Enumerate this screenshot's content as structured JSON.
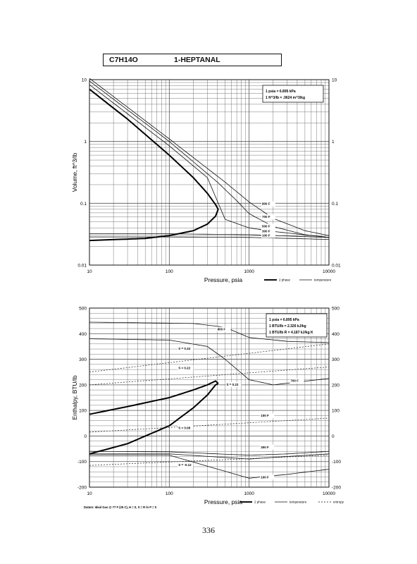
{
  "header": {
    "formula": "C7H14O",
    "name": "1-HEPTANAL"
  },
  "page_number": "336",
  "chart_data": [
    {
      "type": "line",
      "xlabel": "Pressure,  psia",
      "ylabel": "Volume, ft^3/lb",
      "xscale": "log",
      "yscale": "log",
      "xlim": [
        10,
        10000
      ],
      "ylim": [
        0.01,
        10
      ],
      "grid": true,
      "xticks": [
        "10",
        "100",
        "1000",
        "10000"
      ],
      "yticks": [
        "0.01",
        "0.1",
        "1",
        "10"
      ],
      "right_yticks": [
        "0.01",
        "0.1",
        "1",
        "10"
      ],
      "conversion_box": [
        "1 psia  =  6.895 kPa",
        "1 ft^3/lb  =  .0624 m^3/kg"
      ],
      "legend": [
        {
          "label": "2 phase",
          "style": "thick"
        },
        {
          "label": "temperature",
          "style": "thin"
        }
      ],
      "two_phase_dome": {
        "liquid": {
          "x": [
            10,
            50,
            100,
            200,
            300,
            380,
            410
          ],
          "y": [
            0.025,
            0.027,
            0.03,
            0.036,
            0.046,
            0.062,
            0.08
          ]
        },
        "vapor": {
          "x": [
            10,
            30,
            100,
            200,
            300,
            380,
            410
          ],
          "y": [
            7,
            2.3,
            0.6,
            0.26,
            0.145,
            0.095,
            0.08
          ]
        }
      },
      "isotherms": [
        {
          "label": "800 F",
          "x": [
            10,
            100,
            500,
            1000,
            2000,
            5000,
            10000
          ],
          "y": [
            10.5,
            1.1,
            0.22,
            0.105,
            0.057,
            0.036,
            0.03
          ]
        },
        {
          "label": "700 F",
          "x": [
            10,
            100,
            400,
            700,
            1000,
            2000,
            5000,
            10000
          ],
          "y": [
            9.5,
            1,
            0.22,
            0.11,
            0.068,
            0.042,
            0.031,
            0.028
          ]
        },
        {
          "label": "500 F",
          "x": [
            10,
            100,
            300,
            500,
            1000,
            2000,
            10000
          ],
          "y": [
            8.3,
            0.85,
            0.26,
            0.055,
            0.04,
            0.035,
            0.028
          ]
        },
        {
          "label": "300 F",
          "x": [
            10,
            100,
            1000,
            10000
          ],
          "y": [
            0.032,
            0.032,
            0.031,
            0.028
          ]
        },
        {
          "label": "100 F",
          "x": [
            10,
            100,
            1000,
            10000
          ],
          "y": [
            0.0285,
            0.0285,
            0.028,
            0.026
          ]
        }
      ],
      "isotherm_label_positions": [
        {
          "label": "800 F",
          "x": 1450,
          "y": 0.094
        },
        {
          "label": "700 F",
          "x": 1450,
          "y": 0.058
        },
        {
          "label": "500 F",
          "x": 1450,
          "y": 0.041
        },
        {
          "label": "300 F",
          "x": 1450,
          "y": 0.034
        },
        {
          "label": "100 F",
          "x": 1450,
          "y": 0.029
        }
      ]
    },
    {
      "type": "line",
      "xlabel": "Pressure,  psia",
      "ylabel": "Enthalpy, BTU/lb",
      "xscale": "log",
      "xlim": [
        10,
        10000
      ],
      "ylim": [
        -200,
        500
      ],
      "grid": true,
      "xticks": [
        "10",
        "100",
        "1000",
        "10000"
      ],
      "yticks": [
        "-200",
        "-100",
        "0",
        "100",
        "200",
        "300",
        "400",
        "500"
      ],
      "right_yticks": [
        "-200",
        "-100",
        "0",
        "100",
        "200",
        "300",
        "400",
        "500"
      ],
      "conversion_box": [
        "1 psia  =  6.895 kPa",
        "1 BTU/lb  =  2.326 kJ/kg",
        "1 BTU/lb R  =  4.187 kJ/kg K"
      ],
      "legend": [
        {
          "label": "2 phase",
          "style": "thick"
        },
        {
          "label": "temperature",
          "style": "thin"
        },
        {
          "label": "entropy",
          "style": "dashed"
        }
      ],
      "datum_note": "Datum: Ideal Gas @ 77 F (25 C),  H = 0,  S = R ln P = 0",
      "two_phase_dome": {
        "liquid": {
          "x": [
            10,
            30,
            100,
            200,
            300,
            380,
            410
          ],
          "y": [
            -70,
            -30,
            40,
            110,
            160,
            200,
            205
          ]
        },
        "vapor": {
          "x": [
            10,
            30,
            100,
            200,
            300,
            380,
            410
          ],
          "y": [
            85,
            115,
            150,
            180,
            200,
            215,
            205
          ]
        }
      },
      "isotherms": [
        {
          "label": "800 F",
          "x": [
            10,
            200,
            500,
            1000,
            3000,
            10000
          ],
          "y": [
            445,
            440,
            425,
            385,
            370,
            365
          ]
        },
        {
          "label": "700 F",
          "x": [
            10,
            100,
            300,
            500,
            1000,
            2000,
            10000
          ],
          "y": [
            380,
            375,
            350,
            300,
            220,
            200,
            225
          ]
        },
        {
          "label": "100 F",
          "x": [
            10,
            100,
            1000,
            3000,
            10000
          ],
          "y": [
            -60,
            -62,
            -75,
            -70,
            -60
          ]
        },
        {
          "label": "300 F",
          "x": [
            10,
            100,
            1000,
            3000,
            10000
          ],
          "y": [
            -70,
            -70,
            -90,
            -80,
            -70
          ]
        },
        {
          "label": "100 F",
          "x": [
            10,
            100,
            1000,
            3000,
            10000
          ],
          "y": [
            -75,
            -75,
            -165,
            -150,
            -130
          ]
        }
      ],
      "entropy_lines": [
        {
          "label": "S = 0.34",
          "x": [
            10,
            10000
          ],
          "y": [
            250,
            360
          ]
        },
        {
          "label": "S = 0.22",
          "x": [
            10,
            10000
          ],
          "y": [
            200,
            270
          ]
        },
        {
          "label": "S = 0.08",
          "x": [
            10,
            10000
          ],
          "y": [
            15,
            70
          ]
        },
        {
          "label": "S = -0.12",
          "x": [
            10,
            10000
          ],
          "y": [
            -115,
            -75
          ]
        }
      ],
      "isotherm_label_positions": [
        {
          "label": "800 F",
          "x": 400,
          "y": 413
        },
        {
          "label": "700 F",
          "x": 3300,
          "y": 212
        },
        {
          "label": "100 F",
          "x": 1400,
          "y": 75
        },
        {
          "label": "300 F",
          "x": 1400,
          "y": -48
        },
        {
          "label": "100 F",
          "x": 1400,
          "y": -165
        }
      ],
      "entropy_label_positions": [
        {
          "label": "S = 0.34",
          "x": 130,
          "y": 338
        },
        {
          "label": "S = 0.22",
          "x": 130,
          "y": 262
        },
        {
          "label": "S = 0.22",
          "x": 520,
          "y": 197
        },
        {
          "label": "S = 0.08",
          "x": 130,
          "y": 28
        },
        {
          "label": "S = -0.12",
          "x": 130,
          "y": -118
        }
      ]
    }
  ]
}
